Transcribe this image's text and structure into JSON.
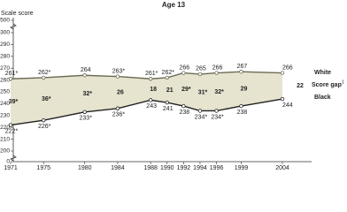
{
  "chart_data": {
    "type": "line",
    "title": "Age 13",
    "ylabel": "Scale score",
    "x": [
      1971,
      1975,
      1980,
      1984,
      1988,
      1990,
      1992,
      1994,
      1996,
      1999,
      2004
    ],
    "xlim": [
      1971,
      2004
    ],
    "ylim": [
      0,
      500
    ],
    "yticks": [
      0,
      200,
      210,
      220,
      230,
      240,
      250,
      260,
      270,
      280,
      290,
      300,
      500
    ],
    "series": [
      {
        "name": "White",
        "color": "#6b6b55",
        "values": [
          261,
          262,
          264,
          263,
          261,
          262,
          266,
          265,
          266,
          267,
          266
        ],
        "value_labels": [
          "261*",
          "262*",
          "264",
          "263*",
          "261*",
          "262*",
          "266",
          "265",
          "266",
          "267",
          "266"
        ]
      },
      {
        "name": "Black",
        "color": "#222222",
        "values": [
          222,
          226,
          233,
          236,
          243,
          241,
          238,
          234,
          234,
          238,
          244
        ],
        "value_labels": [
          "222*",
          "226*",
          "233*",
          "236*",
          "243",
          "241",
          "238",
          "234*",
          "234*",
          "238",
          "244"
        ]
      }
    ],
    "gap_label": "Score gap",
    "gap_footnote": "1",
    "gaps": [
      39,
      36,
      32,
      26,
      18,
      21,
      29,
      31,
      32,
      29,
      22
    ],
    "gap_labels": [
      "39*",
      "36*",
      "32*",
      "26",
      "18",
      "21",
      "29*",
      "31*",
      "32*",
      "29",
      "22"
    ],
    "fill_color": "#e6e4cf"
  }
}
